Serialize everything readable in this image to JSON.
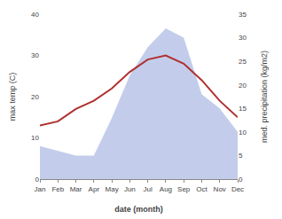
{
  "chart_data": {
    "type": "line",
    "xlabel": "date (month)",
    "ylabel": "max temp (C)",
    "y2label": "med. precipitation (kg/m2)",
    "categories": [
      "Jan",
      "Feb",
      "Mar",
      "Apr",
      "May",
      "Jun",
      "Jul",
      "Aug",
      "Sep",
      "Oct",
      "Nov",
      "Dec"
    ],
    "series": [
      {
        "type": "line",
        "color": "#b03030",
        "values": [
          13,
          14,
          17,
          19,
          22,
          26,
          29,
          30,
          28,
          24,
          19,
          15
        ]
      },
      {
        "type": "area",
        "color": "#b8c4e8",
        "axis": "y2",
        "values": [
          7,
          6,
          5,
          5,
          13,
          22,
          28,
          32,
          30,
          18,
          15,
          10
        ]
      }
    ],
    "ylim": [
      0,
      40
    ],
    "yticks": [
      0,
      10,
      20,
      30,
      40
    ],
    "y2lim": [
      0,
      35
    ],
    "y2ticks": [
      0,
      5,
      10,
      15,
      20,
      25,
      30,
      35
    ],
    "grid": false
  }
}
